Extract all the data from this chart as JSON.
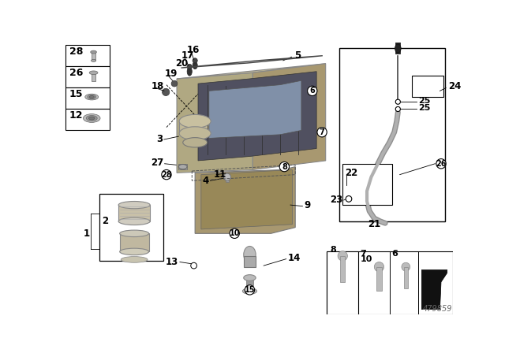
{
  "bg_color": "#ffffff",
  "part_number": "479859",
  "lc": "#000000",
  "tc": "#000000",
  "gray1": "#aaaaaa",
  "gray2": "#888888",
  "gray3": "#666666",
  "gray4": "#cccccc",
  "dark_gray": "#444444",
  "sump_color": "#b0a080",
  "inner_color": "#505060",
  "lower_sump": "#a09070"
}
